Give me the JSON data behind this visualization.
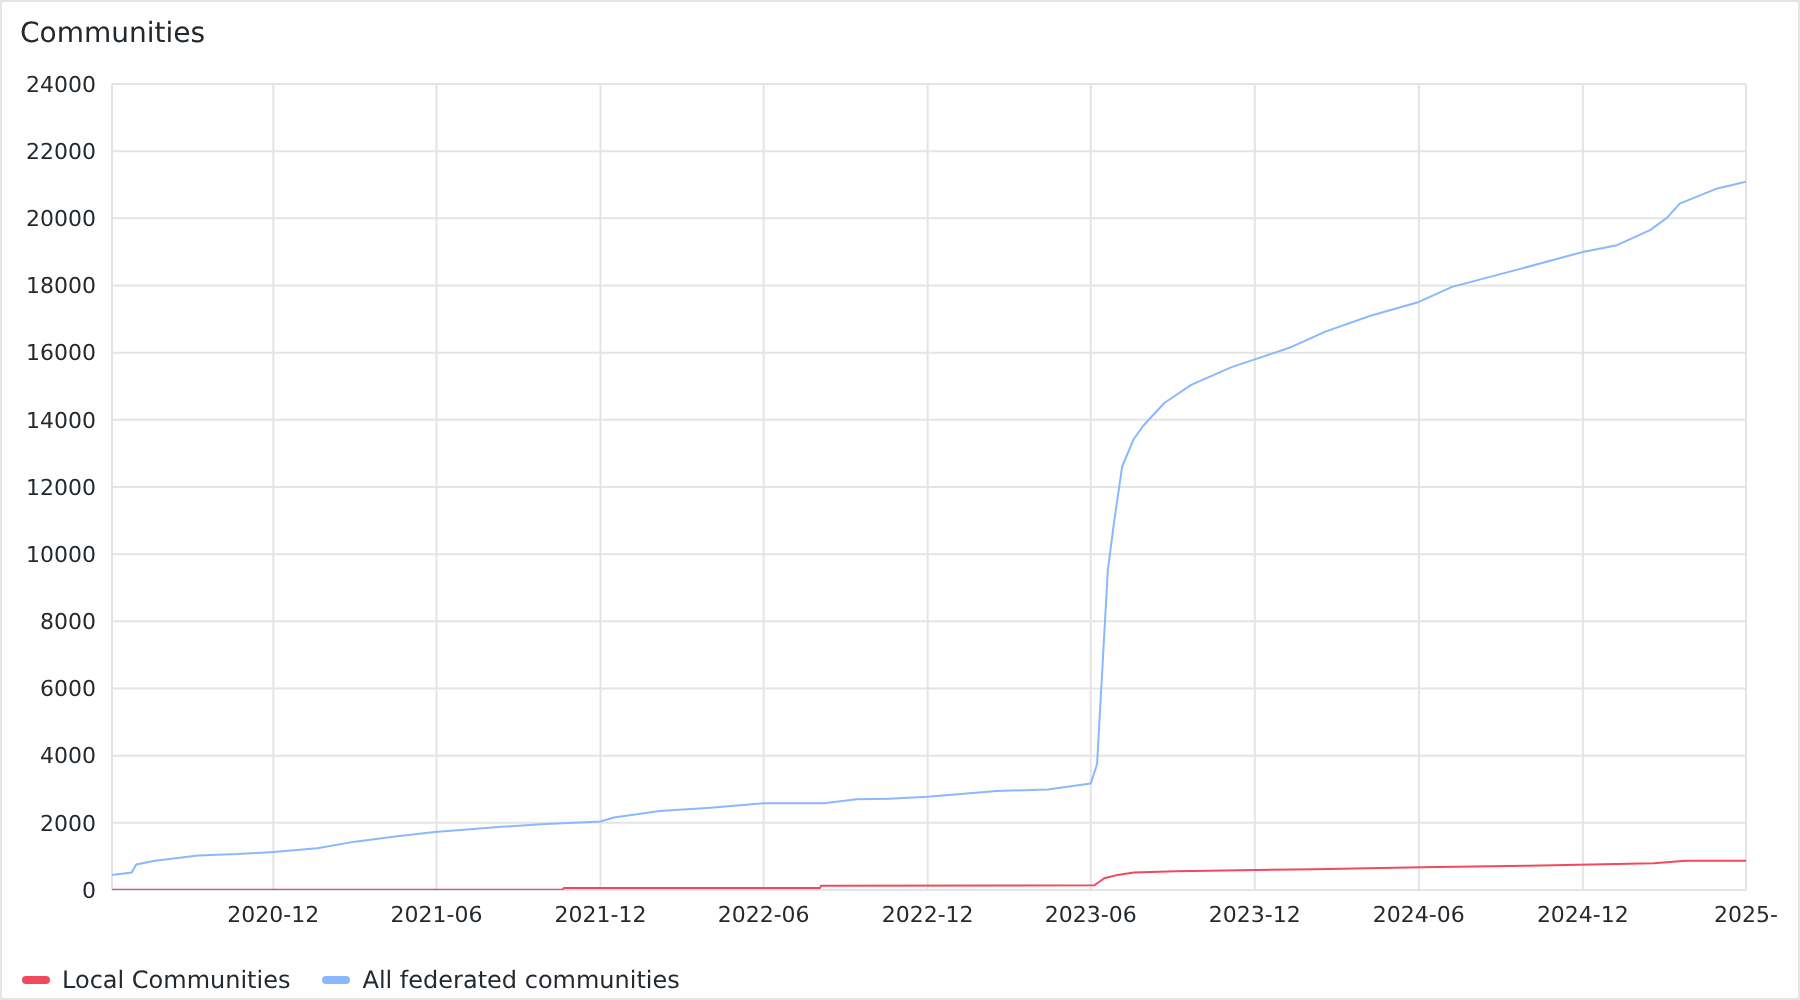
{
  "chart_data": {
    "type": "line",
    "title": "Communities",
    "xlim": [
      "2020-06-04",
      "2025-06-01"
    ],
    "xticks": [
      "2020-12",
      "2021-06",
      "2021-12",
      "2022-06",
      "2022-12",
      "2023-06",
      "2023-12",
      "2024-06",
      "2024-12",
      {
        "value": "2025-06",
        "label": "2025-"
      }
    ],
    "ylim": [
      0,
      24000
    ],
    "yticks": [
      0,
      2000,
      4000,
      6000,
      8000,
      10000,
      12000,
      14000,
      16000,
      18000,
      20000,
      22000,
      24000
    ],
    "grid": true,
    "legend": "bottom left",
    "marker": "none",
    "line_style": "solid",
    "series": [
      {
        "name": "Local Communities",
        "color": "#f2495c",
        "x": [
          "2020-06-04",
          "2021-10-20",
          "2021-10-21",
          "2022-08-03",
          "2022-08-04",
          "2023-06-05",
          "2023-06-16",
          "2023-07-01",
          "2023-07-19",
          "2023-09-04",
          "2024-02-06",
          "2024-06-04",
          "2024-10-01",
          "2025-02-18",
          "2025-03-26",
          "2025-06-01"
        ],
        "values": [
          10,
          10,
          60,
          60,
          130,
          140,
          350,
          450,
          520,
          560,
          620,
          680,
          720,
          800,
          870,
          870
        ]
      },
      {
        "name": "All federated communities",
        "color": "#8ab8ff",
        "x": [
          "2020-06-04",
          "2020-06-26",
          "2020-07-01",
          "2020-07-22",
          "2020-09-08",
          "2020-10-22",
          "2020-12-01",
          "2021-01-19",
          "2021-03-02",
          "2021-04-16",
          "2021-05-30",
          "2021-06-28",
          "2021-08-12",
          "2021-09-25",
          "2021-11-01",
          "2021-12-01",
          "2021-12-16",
          "2022-02-05",
          "2022-04-03",
          "2022-06-01",
          "2022-08-07",
          "2022-09-13",
          "2022-10-19",
          "2022-12-01",
          "2023-02-16",
          "2023-04-14",
          "2023-06-01",
          "2023-06-08",
          "2023-06-14",
          "2023-06-20",
          "2023-06-27",
          "2023-07-06",
          "2023-07-19",
          "2023-07-30",
          "2023-08-22",
          "2023-09-21",
          "2023-11-05",
          "2023-12-01",
          "2024-01-11",
          "2024-02-17",
          "2024-04-08",
          "2024-06-01",
          "2024-07-08",
          "2024-09-20",
          "2024-12-01",
          "2025-01-08",
          "2025-02-14",
          "2025-03-05",
          "2025-03-19",
          "2025-04-30",
          "2025-06-01"
        ],
        "values": [
          450,
          520,
          760,
          870,
          1030,
          1070,
          1130,
          1240,
          1440,
          1590,
          1730,
          1790,
          1880,
          1960,
          2000,
          2040,
          2160,
          2350,
          2450,
          2580,
          2580,
          2700,
          2720,
          2780,
          2950,
          2990,
          3170,
          3750,
          6630,
          9520,
          10960,
          12610,
          13430,
          13840,
          14500,
          15040,
          15570,
          15800,
          16170,
          16620,
          17100,
          17510,
          17960,
          18480,
          19000,
          19200,
          19650,
          20020,
          20440,
          20890,
          21090
        ]
      }
    ]
  }
}
